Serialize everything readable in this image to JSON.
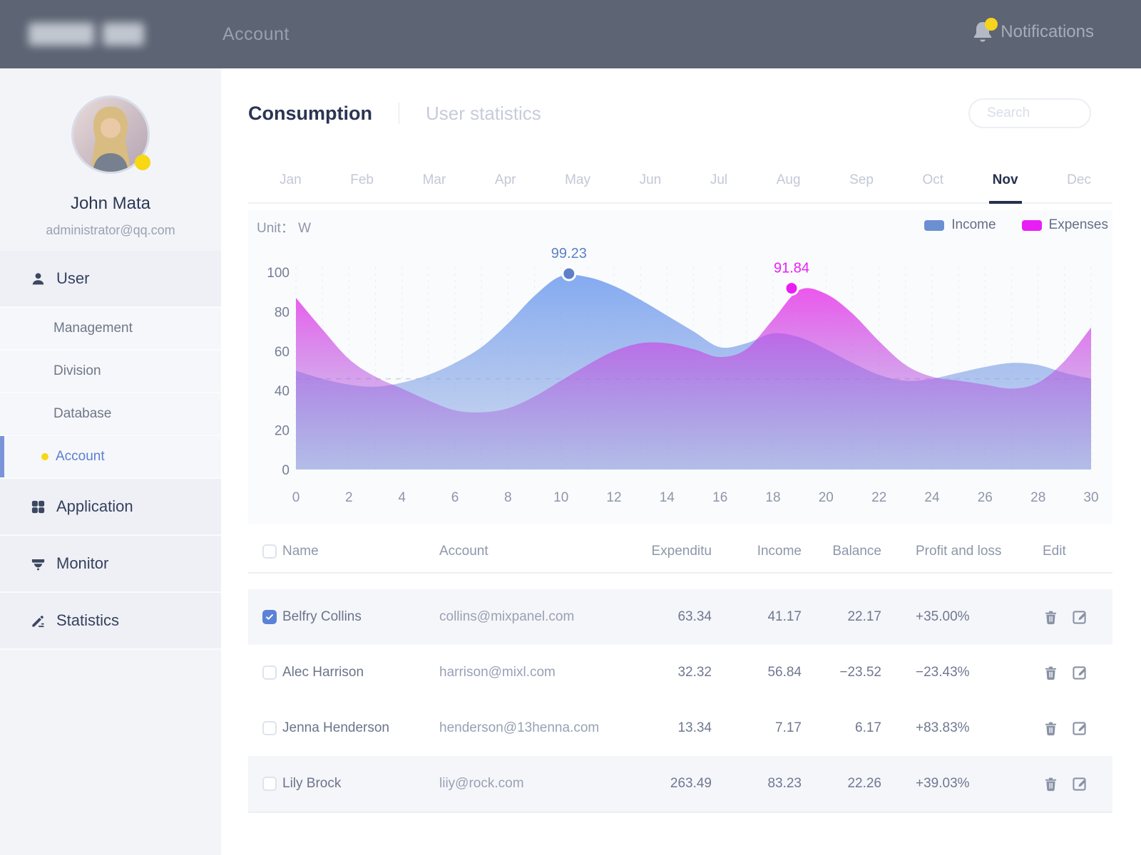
{
  "topbar": {
    "title": "Account",
    "notifications_label": "Notifications",
    "badge_color": "#f6d31c"
  },
  "sidebar": {
    "user": {
      "name": "John Mata",
      "email": "administrator@qq.com"
    },
    "menu": [
      {
        "label": "User",
        "icon": "user-icon",
        "level": "section",
        "active": true
      },
      {
        "label": "Management",
        "level": "sub"
      },
      {
        "label": "Division",
        "level": "sub"
      },
      {
        "label": "Database",
        "level": "sub"
      },
      {
        "label": "Account",
        "level": "sub",
        "selected": true
      },
      {
        "label": "Application",
        "icon": "app-grid-icon",
        "level": "section"
      },
      {
        "label": "Monitor",
        "icon": "monitor-camera-icon",
        "level": "section"
      },
      {
        "label": "Statistics",
        "icon": "statistics-pencil-icon",
        "level": "section"
      }
    ],
    "selected_color": "#5b7fd0",
    "accent_bar_color": "#7b94d9",
    "bullet_color": "#f8d714"
  },
  "content": {
    "tabs": [
      {
        "label": "Consumption",
        "active": true
      },
      {
        "label": "User statistics",
        "active": false
      }
    ],
    "search_placeholder": "Search",
    "months": [
      "Jan",
      "Feb",
      "Mar",
      "Apr",
      "May",
      "Jun",
      "Jul",
      "Aug",
      "Sep",
      "Oct",
      "Nov",
      "Dec"
    ],
    "active_month": "Nov",
    "chart": {
      "unit_label": "Unit： W",
      "legend": [
        {
          "label": "Income",
          "color": "#6c8fd2"
        },
        {
          "label": "Expenses",
          "color": "#e81ef5"
        }
      ]
    },
    "table": {
      "headers": [
        "Name",
        "Account",
        "Expenditu",
        "Income",
        "Balance",
        "Profit and loss",
        "Edit"
      ],
      "rows": [
        {
          "checked": true,
          "shaded": true,
          "name": "Belfry Collins",
          "account": "collins@mixpanel.com",
          "expenditure": "63.34",
          "income": "41.17",
          "balance": "22.17",
          "profit": "+35.00%"
        },
        {
          "checked": false,
          "shaded": false,
          "name": "Alec Harrison",
          "account": "harrison@mixl.com",
          "expenditure": "32.32",
          "income": "56.84",
          "balance": "−23.52",
          "profit": "−23.43%"
        },
        {
          "checked": false,
          "shaded": false,
          "name": "Jenna Henderson",
          "account": "henderson@13henna.com",
          "expenditure": "13.34",
          "income": "7.17",
          "balance": "6.17",
          "profit": "+83.83%"
        },
        {
          "checked": false,
          "shaded": true,
          "name": "Lily Brock",
          "account": "liiy@rock.com",
          "expenditure": "263.49",
          "income": "83.23",
          "balance": "22.26",
          "profit": "+39.03%"
        }
      ],
      "checkbox_checked_color": "#5b82d7"
    }
  },
  "chart_data": {
    "type": "area",
    "title": "Consumption — Nov",
    "unit": "W",
    "xlabel": "",
    "ylabel": "",
    "x_ticks": [
      0,
      2,
      4,
      6,
      8,
      10,
      12,
      14,
      16,
      18,
      20,
      22,
      24,
      26,
      28,
      30
    ],
    "y_ticks": [
      0,
      20,
      40,
      60,
      80,
      100
    ],
    "xlim": [
      0,
      30
    ],
    "ylim": [
      0,
      108
    ],
    "grid": {
      "vertical_dashed_step": 1,
      "reference_line_y": 46
    },
    "legend_position": "top-right",
    "series": [
      {
        "name": "Income",
        "color": "#6c8fd2",
        "points": [
          [
            0,
            50
          ],
          [
            1,
            46
          ],
          [
            2,
            43
          ],
          [
            3,
            42
          ],
          [
            4,
            44
          ],
          [
            5,
            48
          ],
          [
            6,
            54
          ],
          [
            7,
            62
          ],
          [
            8,
            74
          ],
          [
            9,
            88
          ],
          [
            10,
            98
          ],
          [
            11,
            97.5
          ],
          [
            12,
            93
          ],
          [
            13,
            86
          ],
          [
            14,
            78
          ],
          [
            15,
            70
          ],
          [
            16,
            62
          ],
          [
            17,
            64
          ],
          [
            18,
            69
          ],
          [
            19,
            67
          ],
          [
            20,
            61
          ],
          [
            21,
            54
          ],
          [
            22,
            48
          ],
          [
            23,
            45
          ],
          [
            24,
            46
          ],
          [
            25,
            49
          ],
          [
            26,
            52
          ],
          [
            27,
            54
          ],
          [
            28,
            53
          ],
          [
            29,
            49
          ],
          [
            30,
            46
          ]
        ]
      },
      {
        "name": "Expenses",
        "color": "#e81ef5",
        "points": [
          [
            0,
            87
          ],
          [
            1,
            71
          ],
          [
            2,
            56
          ],
          [
            3,
            47
          ],
          [
            4,
            41
          ],
          [
            5,
            35
          ],
          [
            6,
            30
          ],
          [
            7,
            29
          ],
          [
            8,
            31
          ],
          [
            9,
            37
          ],
          [
            10,
            45
          ],
          [
            11,
            53
          ],
          [
            12,
            60
          ],
          [
            13,
            64
          ],
          [
            14,
            64
          ],
          [
            15,
            61
          ],
          [
            16,
            57
          ],
          [
            17,
            61
          ],
          [
            18,
            76
          ],
          [
            19,
            91
          ],
          [
            20,
            89
          ],
          [
            21,
            79
          ],
          [
            22,
            65
          ],
          [
            23,
            53
          ],
          [
            24,
            47
          ],
          [
            25,
            45
          ],
          [
            26,
            43
          ],
          [
            27,
            41
          ],
          [
            28,
            44
          ],
          [
            29,
            55
          ],
          [
            30,
            72
          ]
        ]
      }
    ],
    "markers": [
      {
        "series": "Income",
        "x": 10.3,
        "y": 99.23,
        "label": "99.23",
        "color": "#5d80c8"
      },
      {
        "series": "Expenses",
        "x": 18.7,
        "y": 91.84,
        "label": "91.84",
        "color": "#e81ef5"
      }
    ]
  }
}
